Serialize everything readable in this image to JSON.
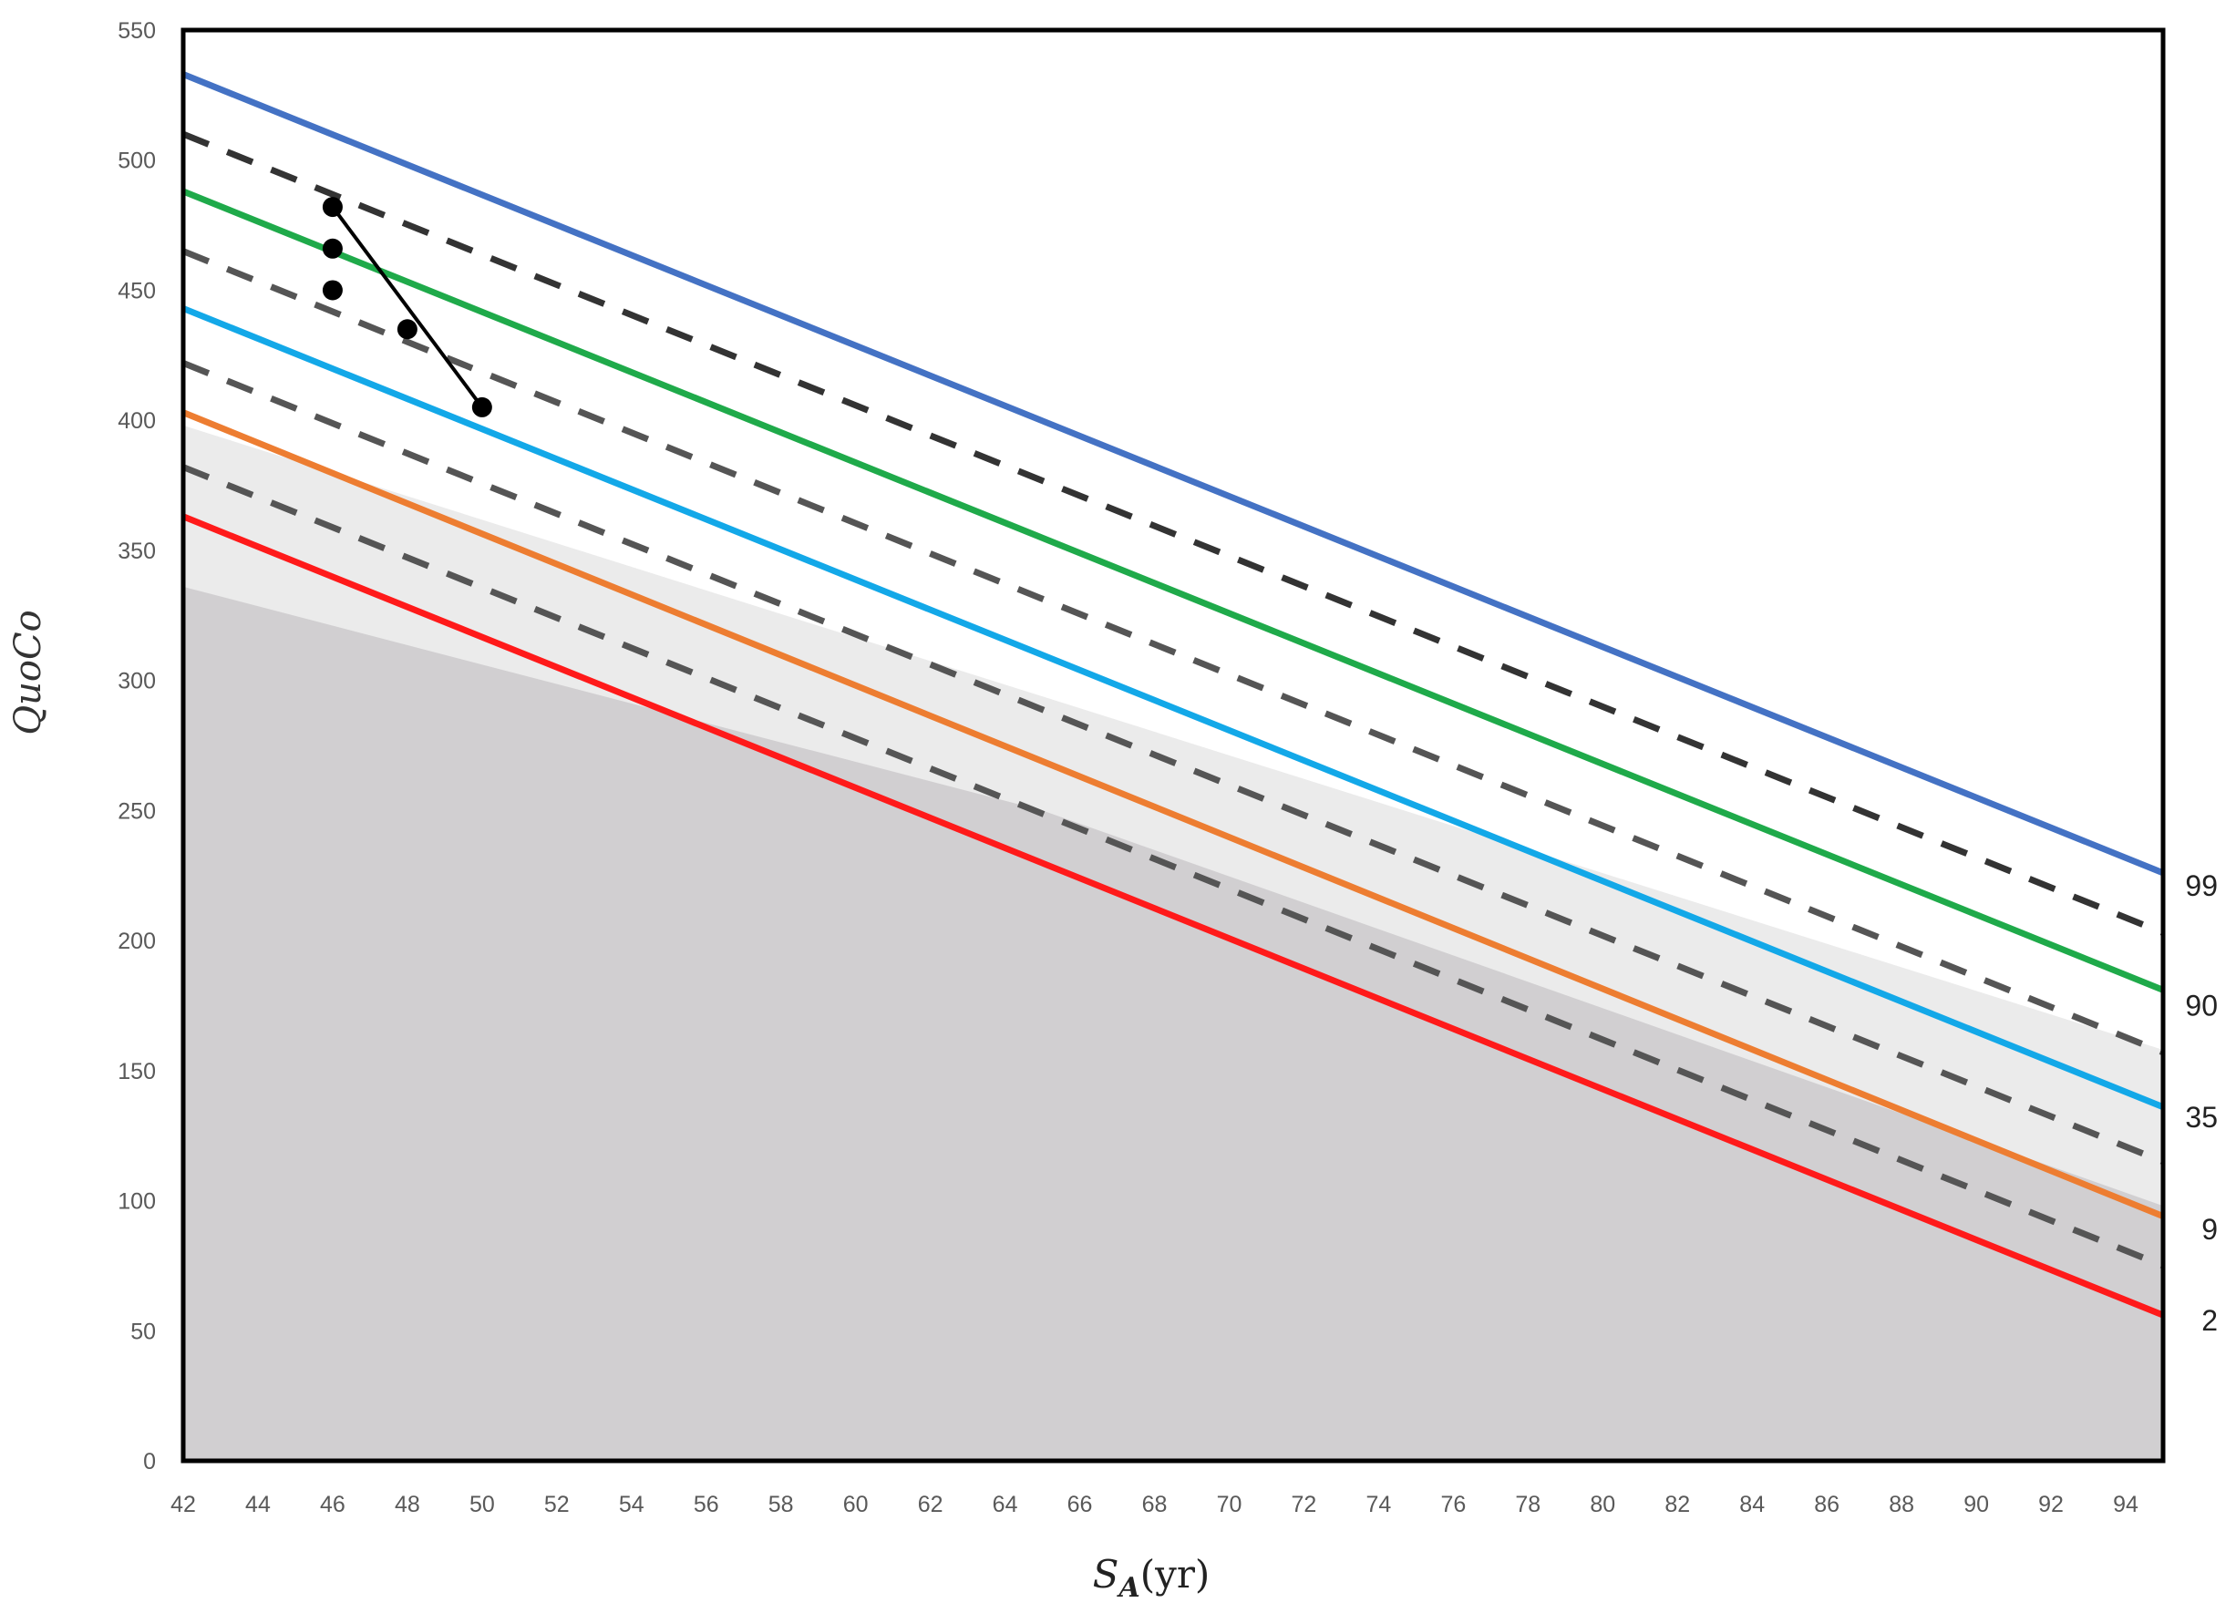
{
  "chart_data": {
    "type": "line",
    "title": "",
    "xlabel": {
      "main": "S",
      "sub": "A",
      "unit": "(yr)"
    },
    "ylabel": "QuoCo",
    "xlim": [
      42,
      95
    ],
    "ylim": [
      0,
      550
    ],
    "x_ticks": [
      42,
      44,
      46,
      48,
      50,
      52,
      54,
      56,
      58,
      60,
      62,
      64,
      66,
      68,
      70,
      72,
      74,
      76,
      78,
      80,
      82,
      84,
      86,
      88,
      90,
      92,
      94
    ],
    "y_ticks": [
      0,
      50,
      100,
      150,
      200,
      250,
      300,
      350,
      400,
      450,
      500,
      550
    ],
    "grid": false,
    "legend": "none",
    "shaded_regions": [
      {
        "color": "#ebebeb",
        "upper": [
          [
            42,
            398
          ],
          [
            95,
            158
          ]
        ]
      },
      {
        "color": "#d1cfd1",
        "upper": [
          [
            42,
            336
          ],
          [
            65,
            250
          ],
          [
            95,
            98
          ]
        ]
      }
    ],
    "series": [
      {
        "style": "solid",
        "color": "#4472c4",
        "x": [
          42,
          95
        ],
        "y": [
          533,
          226
        ]
      },
      {
        "style": "dashed",
        "color": "#333333",
        "x": [
          42,
          95
        ],
        "y": [
          510,
          203
        ]
      },
      {
        "style": "solid",
        "color": "#1faa4a",
        "x": [
          42,
          95
        ],
        "y": [
          488,
          181
        ]
      },
      {
        "style": "dashed",
        "color": "#555555",
        "x": [
          42,
          95
        ],
        "y": [
          465,
          157
        ]
      },
      {
        "style": "solid",
        "color": "#13a8e8",
        "x": [
          42,
          95
        ],
        "y": [
          443,
          136
        ]
      },
      {
        "style": "dashed",
        "color": "#555555",
        "x": [
          42,
          95
        ],
        "y": [
          422,
          115
        ]
      },
      {
        "style": "solid",
        "color": "#ed7d31",
        "x": [
          42,
          95
        ],
        "y": [
          403,
          94
        ]
      },
      {
        "style": "dashed",
        "color": "#555555",
        "x": [
          42,
          95
        ],
        "y": [
          382,
          75
        ]
      },
      {
        "style": "solid",
        "color": "#ff1a1a",
        "x": [
          42,
          95
        ],
        "y": [
          363,
          56
        ]
      }
    ],
    "observations": {
      "color": "#000000",
      "x": [
        46,
        46,
        46,
        48,
        50
      ],
      "y": [
        482,
        466,
        450,
        435,
        405
      ],
      "trend": {
        "x": [
          46,
          50
        ],
        "y": [
          482,
          405
        ]
      }
    },
    "percentile_labels": [
      {
        "text": "99",
        "y": 221
      },
      {
        "text": "90",
        "y": 175
      },
      {
        "text": "35",
        "y": 132
      },
      {
        "text": "9",
        "y": 89
      },
      {
        "text": "2",
        "y": 54
      }
    ]
  }
}
